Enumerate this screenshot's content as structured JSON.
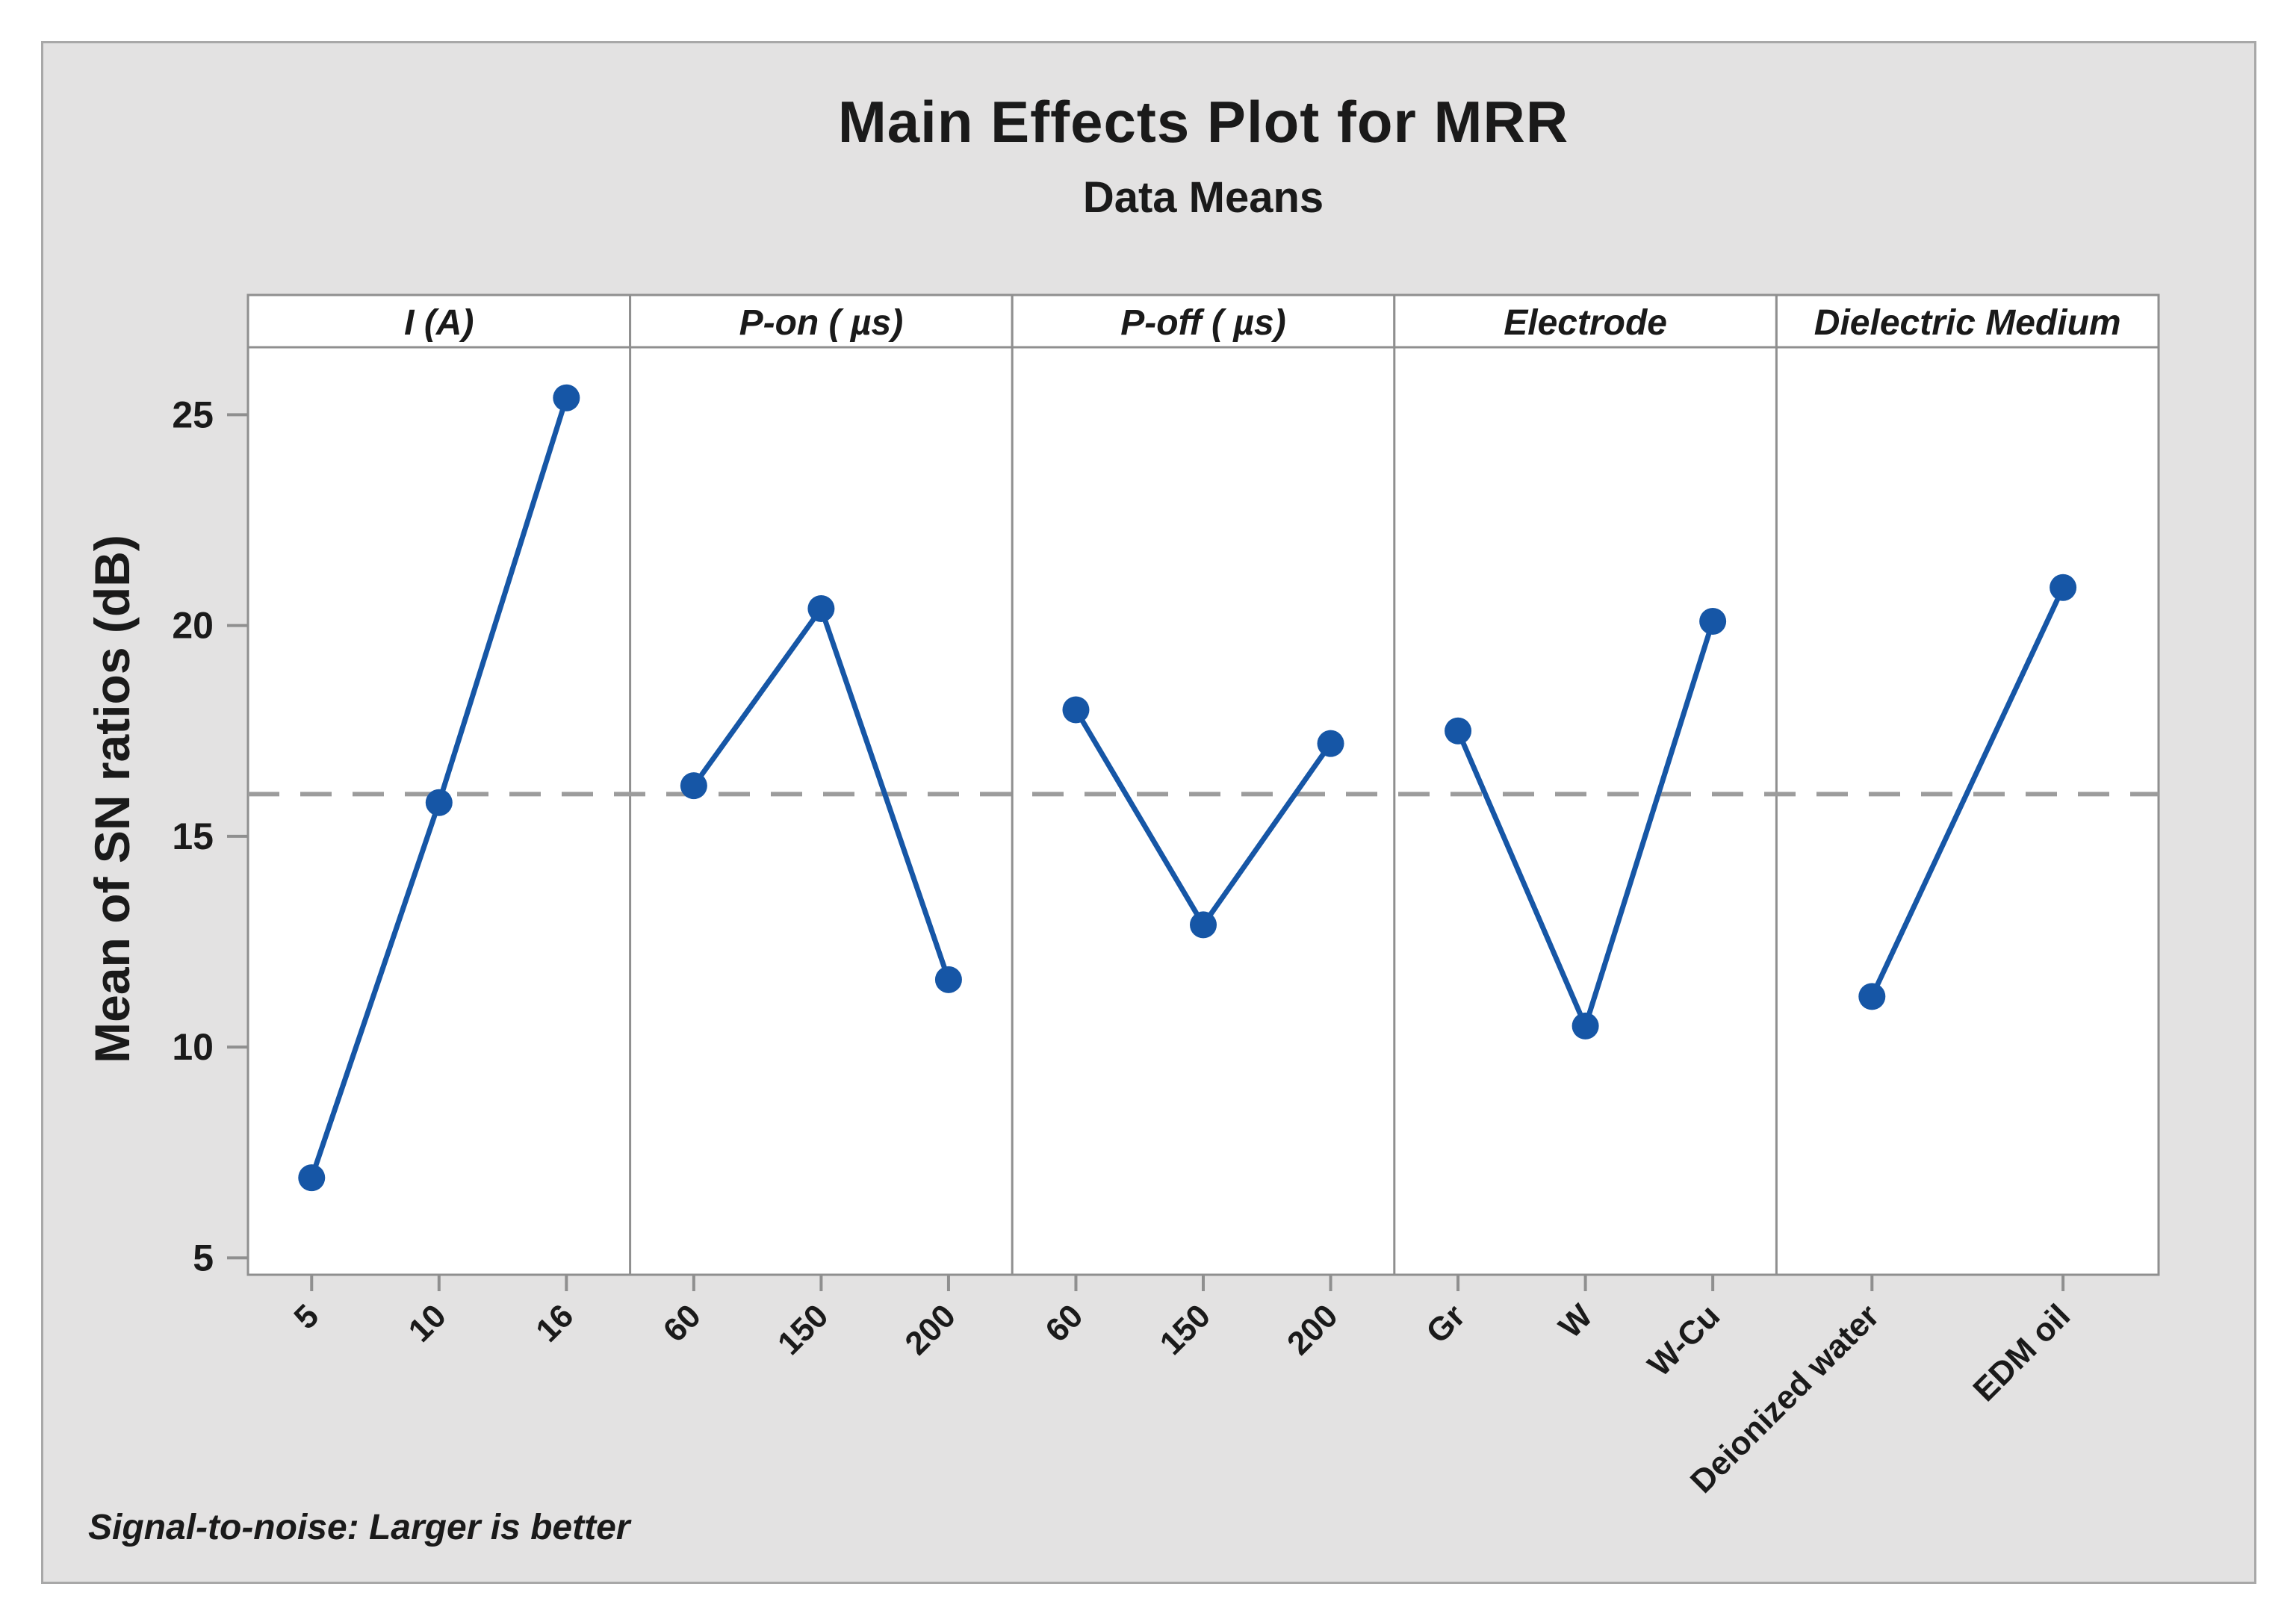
{
  "title": "Main Effects Plot for MRR",
  "subtitle": "Data Means",
  "footer": "Signal-to-noise: Larger is better",
  "chart_data": {
    "type": "line",
    "description": "Minitab-style main effects plot with five factor panels sharing one y-axis",
    "ylabel": "Mean of SN ratios (dB)",
    "yticks": [
      5,
      10,
      15,
      20,
      25
    ],
    "ylim": [
      4.6,
      26.6
    ],
    "grand_mean": 16.0,
    "mean_line_style": "dashed",
    "grid": false,
    "panels": [
      {
        "label": "I (A)",
        "categories": [
          "5",
          "10",
          "16"
        ],
        "values": [
          6.9,
          15.8,
          25.4
        ]
      },
      {
        "label": "P-on ( µs)",
        "categories": [
          "60",
          "150",
          "200"
        ],
        "values": [
          16.2,
          20.4,
          11.6
        ]
      },
      {
        "label": "P-off ( µs)",
        "categories": [
          "60",
          "150",
          "200"
        ],
        "values": [
          18.0,
          12.9,
          17.2
        ]
      },
      {
        "label": "Electrode",
        "categories": [
          "Gr",
          "W",
          "W-Cu"
        ],
        "values": [
          17.5,
          10.5,
          20.1
        ]
      },
      {
        "label": "Dielectric Medium",
        "categories": [
          "Deionized water",
          "EDM oil"
        ],
        "values": [
          11.2,
          20.9
        ]
      }
    ],
    "colors": {
      "line": "#1656A6",
      "marker": "#1656A6",
      "mean_line": "#9C9C9C",
      "panel_border": "#8F8F8F",
      "canvas_bg": "#E3E2E2",
      "canvas_border": "#A8A8A8",
      "plot_bg": "#FFFFFF",
      "text": "#1A1A1A"
    }
  }
}
